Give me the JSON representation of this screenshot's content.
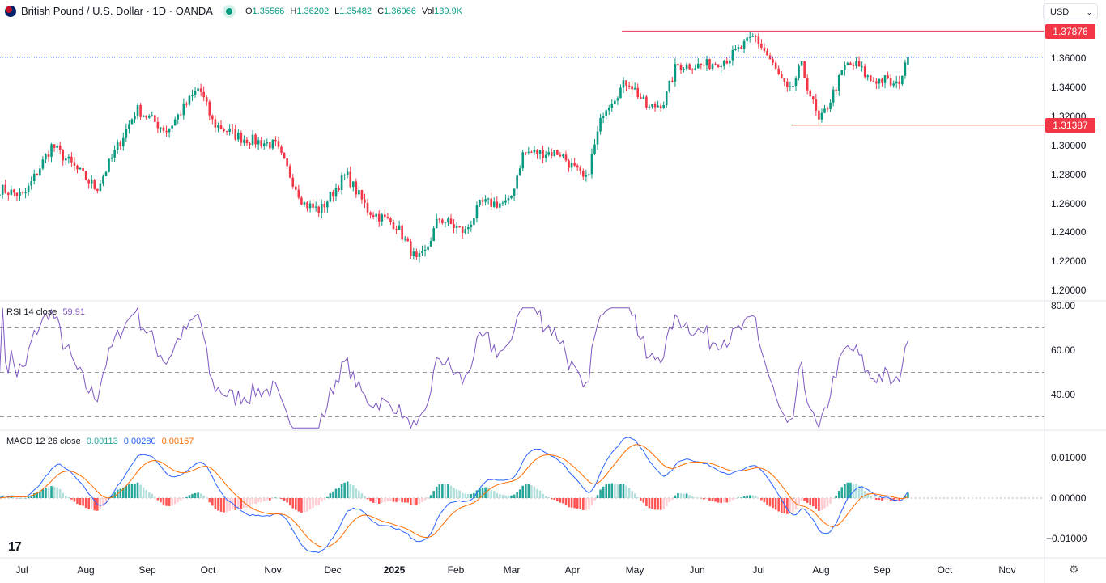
{
  "header": {
    "symbol": "British Pound / U.S. Dollar · 1D · OANDA",
    "ohlc": [
      {
        "label": "O",
        "value": "1.35566"
      },
      {
        "label": "H",
        "value": "1.36202"
      },
      {
        "label": "L",
        "value": "1.35482"
      },
      {
        "label": "C",
        "value": "1.36066"
      },
      {
        "label": "Vol",
        "value": "139.9K"
      }
    ]
  },
  "currency_select": "USD",
  "colors": {
    "up": "#089981",
    "down": "#f23645",
    "rsi": "#7e57c2",
    "macd": "#2962ff",
    "signal": "#ff6d00",
    "hist_up": "#26a69a",
    "hist_up_fade": "#b2dfdb",
    "hist_dn": "#ff5252",
    "hist_dn_fade": "#ffcdd2"
  },
  "price_axis": [
    "1.36000",
    "1.34000",
    "1.32000",
    "1.30000",
    "1.28000",
    "1.26000",
    "1.24000",
    "1.22000",
    "1.20000"
  ],
  "levels": [
    {
      "label": "1.37876",
      "value": 1.37876,
      "from": "2025-04-25"
    },
    {
      "label": "1.31387",
      "value": 1.31387,
      "from": "2025-07-18"
    }
  ],
  "rsi": {
    "label": "RSI 14 close",
    "value": "59.91",
    "axis": [
      "80.00",
      "60.00",
      "40.00"
    ],
    "bands": [
      70,
      50,
      30
    ]
  },
  "macd": {
    "label": "MACD 12 26 close",
    "hist": "0.00113",
    "macd": "0.00280",
    "signal": "0.00167",
    "axis": [
      "0.01000",
      "0.00000",
      "−0.01000"
    ]
  },
  "time_axis": [
    "Jul",
    "Aug",
    "Sep",
    "Oct",
    "Nov",
    "Dec",
    "2025",
    "Feb",
    "Mar",
    "Apr",
    "May",
    "Jun",
    "Jul",
    "Aug",
    "Sep",
    "Oct",
    "Nov"
  ],
  "chart_data": {
    "type": "candlestick",
    "title": "British Pound / U.S. Dollar · 1D · OANDA",
    "ylim": [
      1.19,
      1.385
    ],
    "approx_closes": [
      [
        "2024-06-20",
        1.27
      ],
      [
        "2024-07-02",
        1.265
      ],
      [
        "2024-07-16",
        1.3
      ],
      [
        "2024-08-07",
        1.27
      ],
      [
        "2024-08-27",
        1.325
      ],
      [
        "2024-09-11",
        1.31
      ],
      [
        "2024-09-27",
        1.34
      ],
      [
        "2024-10-04",
        1.315
      ],
      [
        "2024-10-18",
        1.305
      ],
      [
        "2024-11-04",
        1.3
      ],
      [
        "2024-11-18",
        1.26
      ],
      [
        "2024-11-26",
        1.255
      ],
      [
        "2024-12-09",
        1.28
      ],
      [
        "2024-12-20",
        1.255
      ],
      [
        "2025-01-03",
        1.245
      ],
      [
        "2025-01-13",
        1.22
      ],
      [
        "2025-01-17",
        1.225
      ],
      [
        "2025-01-24",
        1.25
      ],
      [
        "2025-02-06",
        1.24
      ],
      [
        "2025-02-14",
        1.26
      ],
      [
        "2025-02-28",
        1.26
      ],
      [
        "2025-03-07",
        1.295
      ],
      [
        "2025-03-25",
        1.295
      ],
      [
        "2025-04-07",
        1.275
      ],
      [
        "2025-04-16",
        1.325
      ],
      [
        "2025-04-28",
        1.345
      ],
      [
        "2025-05-08",
        1.325
      ],
      [
        "2025-05-16",
        1.33
      ],
      [
        "2025-05-22",
        1.355
      ],
      [
        "2025-06-05",
        1.355
      ],
      [
        "2025-06-17",
        1.36
      ],
      [
        "2025-06-30",
        1.375
      ],
      [
        "2025-07-07",
        1.36
      ],
      [
        "2025-07-17",
        1.335
      ],
      [
        "2025-07-23",
        1.355
      ],
      [
        "2025-08-01",
        1.315
      ],
      [
        "2025-08-06",
        1.33
      ],
      [
        "2025-08-14",
        1.355
      ],
      [
        "2025-08-20",
        1.355
      ],
      [
        "2025-08-26",
        1.345
      ],
      [
        "2025-09-03",
        1.345
      ],
      [
        "2025-09-08",
        1.34
      ],
      [
        "2025-09-15",
        1.36066
      ]
    ],
    "last_bar": {
      "open": 1.35566,
      "high": 1.36202,
      "low": 1.35482,
      "close": 1.36066
    }
  }
}
